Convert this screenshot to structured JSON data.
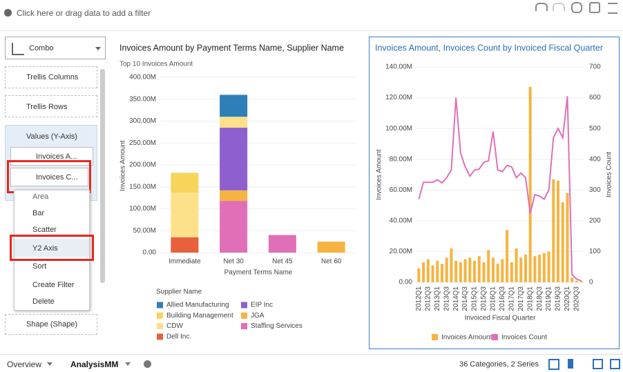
{
  "toolbar": {
    "filter_hint": "Click here or drag data to add a filter"
  },
  "panel": {
    "chart_type": "Combo",
    "trellis_columns": "Trellis Columns",
    "trellis_rows": "Trellis Rows",
    "values_section": "Values (Y-Axis)",
    "value_items": [
      "Invoices A...",
      "Invoices C..."
    ],
    "menu": [
      "Area",
      "Bar",
      "Scatter",
      "Y2 Axis",
      "Sort",
      "Create Filter",
      "Delete"
    ],
    "shape": "Shape (Shape)"
  },
  "chart_data": [
    {
      "type": "stacked-bar",
      "title": "Invoices Amount by Payment Terms Name, Supplier Name",
      "subtitle": "Top 10 Invoices Amount",
      "y_label": "Invoices Amount",
      "x_label": "Payment Terms Name",
      "legend_title": "Supplier Name",
      "categories": [
        "Immediate",
        "Net 30",
        "Net 45",
        "Net 60"
      ],
      "ylim": [
        0,
        400000000
      ],
      "yticks": [
        {
          "value": 0,
          "label": "0.00"
        },
        {
          "value": 50000000,
          "label": "50.00M"
        },
        {
          "value": 100000000,
          "label": "100.00M"
        },
        {
          "value": 150000000,
          "label": "150.00M"
        },
        {
          "value": 200000000,
          "label": "200.00M"
        },
        {
          "value": 250000000,
          "label": "250.00M"
        },
        {
          "value": 300000000,
          "label": "300.00M"
        },
        {
          "value": 350000000,
          "label": "350.00M"
        },
        {
          "value": 400000000,
          "label": "400.00M"
        }
      ],
      "series": [
        {
          "name": "Dell Inc.",
          "color": "#e8603c",
          "values": [
            35000000,
            null,
            null,
            null
          ]
        },
        {
          "name": "Staffing Services",
          "color": "#e06fb8",
          "values": [
            null,
            118000000,
            40000000,
            null
          ]
        },
        {
          "name": "JGA",
          "color": "#f5b442",
          "values": [
            null,
            24000000,
            null,
            25000000
          ]
        },
        {
          "name": "EIP Inc",
          "color": "#8e5fcf",
          "values": [
            null,
            143000000,
            null,
            null
          ]
        },
        {
          "name": "CDW",
          "color": "#fde08a",
          "values": [
            102000000,
            25000000,
            null,
            null
          ]
        },
        {
          "name": "Building Management",
          "color": "#f7d55a",
          "values": [
            45000000,
            null,
            null,
            null
          ]
        },
        {
          "name": "Allied Manufacturing",
          "color": "#2e7fb8",
          "values": [
            null,
            50000000,
            null,
            null
          ]
        }
      ]
    },
    {
      "type": "combo",
      "title": "Invoices Amount, Invoices Count by Invoiced Fiscal Quarter",
      "y_label": "Invoices Amount",
      "y2_label": "Invoices Count",
      "x_label": "Invoiced Fiscal Quarter",
      "categories": [
        "2012Q1",
        null,
        "2012Q3",
        null,
        "2013Q1",
        null,
        "2013Q3",
        null,
        "2014Q1",
        null,
        "2014Q3",
        null,
        "2015Q1",
        null,
        "2015Q3",
        null,
        "2016Q1",
        null,
        "2016Q3",
        null,
        "2017Q1",
        null,
        "2017Q3",
        null,
        "2018Q1",
        null,
        "2018Q3",
        null,
        "2019Q1",
        null,
        "2019Q3",
        null,
        "2020Q1",
        null,
        "2020Q3",
        null
      ],
      "ylim": [
        0,
        140000000
      ],
      "yticks": [
        {
          "value": 0,
          "label": "0.00"
        },
        {
          "value": 20000000,
          "label": "20.00M"
        },
        {
          "value": 40000000,
          "label": "40.00M"
        },
        {
          "value": 60000000,
          "label": "60.00M"
        },
        {
          "value": 80000000,
          "label": "80.00M"
        },
        {
          "value": 100000000,
          "label": "100.00M"
        },
        {
          "value": 120000000,
          "label": "120.00M"
        },
        {
          "value": 140000000,
          "label": "140.00M"
        }
      ],
      "y2lim": [
        0,
        700
      ],
      "y2ticks": [
        0,
        100,
        200,
        300,
        400,
        500,
        600,
        700
      ],
      "series": [
        {
          "name": "Invoices Amount",
          "color": "#f5b442",
          "kind": "bar",
          "values": [
            9000000,
            13000000,
            15000000,
            11000000,
            14000000,
            12000000,
            16000000,
            22000000,
            14000000,
            13000000,
            15000000,
            16000000,
            14000000,
            17000000,
            13000000,
            21000000,
            16000000,
            12000000,
            15000000,
            34000000,
            13000000,
            22000000,
            16000000,
            18000000,
            127000000,
            17000000,
            18000000,
            19000000,
            20000000,
            67000000,
            66000000,
            52000000,
            58000000,
            3000000,
            1000000,
            1000000
          ]
        },
        {
          "name": "Invoices Count",
          "color": "#e06fb8",
          "kind": "line",
          "axis": "y2",
          "values": [
            270,
            325,
            325,
            325,
            333,
            323,
            340,
            365,
            600,
            420,
            375,
            345,
            365,
            368,
            390,
            395,
            490,
            365,
            360,
            380,
            375,
            340,
            355,
            340,
            225,
            285,
            280,
            270,
            300,
            470,
            500,
            470,
            605,
            25,
            10,
            5
          ]
        }
      ]
    }
  ],
  "footer": {
    "tabs": [
      "Overview",
      "AnalysisMM"
    ],
    "status": "36 Categories, 2 Series"
  }
}
